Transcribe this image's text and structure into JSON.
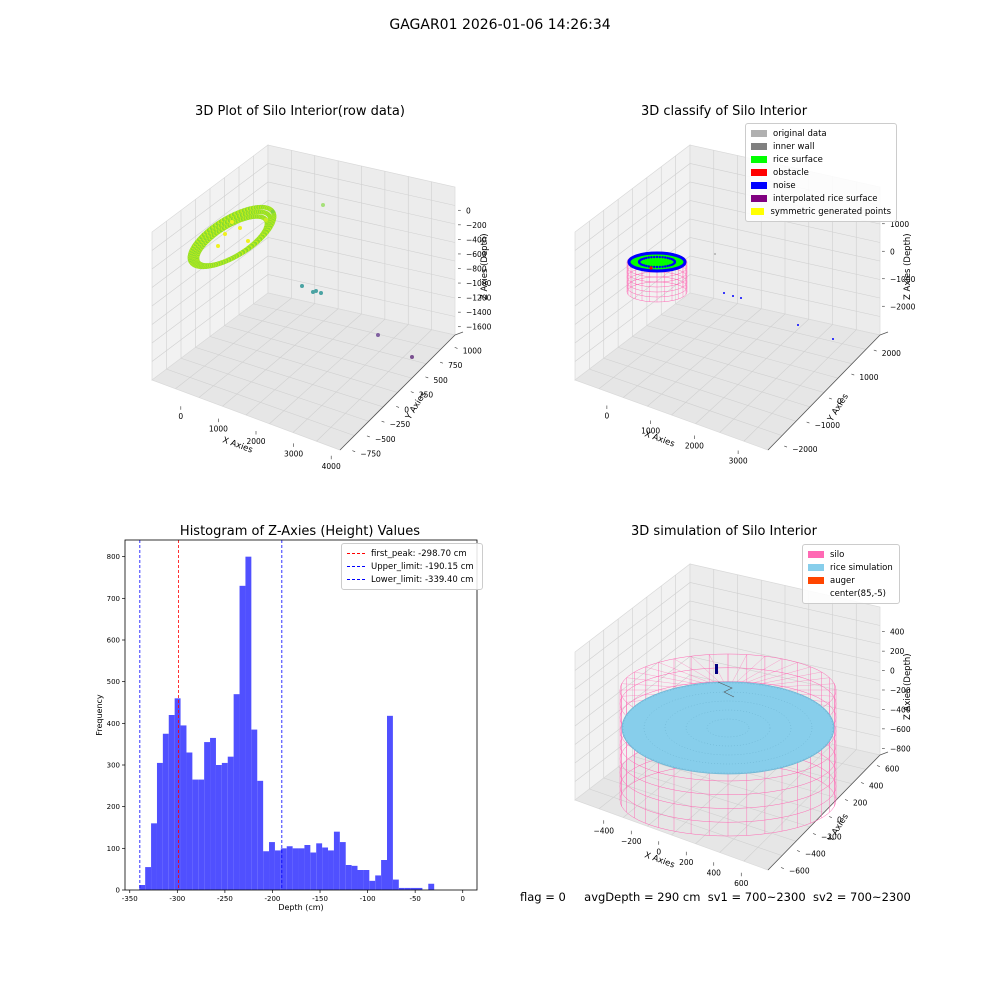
{
  "figure_title": "GAGAR01 2026-01-06 14:26:34",
  "status_line": {
    "flag": "flag = 0",
    "avg_depth": "avgDepth = 290 cm",
    "sv1": "sv1 = 700~2300",
    "sv2": "sv2 = 700~2300"
  },
  "colors": {
    "rice_surface": "#00ff00",
    "noise": "#0000ff",
    "silo": "#ff69b4",
    "rice_simulation": "#87ceeb",
    "auger": "#ff4500",
    "hist_bar": "#5050ff",
    "first_peak": "#ff0000",
    "limit_line": "#0000ff"
  },
  "chart_data": [
    {
      "type": "scatter",
      "subtype": "3d",
      "title": "3D Plot of Silo Interior(row data)",
      "xlabel": "X Axies",
      "ylabel": "Y Axies",
      "zlabel": "Z Axies (Depth)",
      "x_ticks": [
        "0",
        "1000",
        "2000",
        "3000",
        "4000"
      ],
      "y_ticks": [
        "−750",
        "−500",
        "−250",
        "0",
        "250",
        "500",
        "750",
        "1000"
      ],
      "z_ticks": [
        "0",
        "−200",
        "−400",
        "−600",
        "−800",
        "−1000",
        "−1200",
        "−1400",
        "−1600"
      ]
    },
    {
      "type": "scatter",
      "subtype": "3d",
      "title": "3D classify of Silo Interior",
      "xlabel": "X Axies",
      "ylabel": "Y Axies",
      "zlabel": "Z Axies (Depth)",
      "x_ticks": [
        "0",
        "1000",
        "2000",
        "3000"
      ],
      "y_ticks": [
        "−2000",
        "−1000",
        "0",
        "1000",
        "2000"
      ],
      "z_ticks": [
        "1000",
        "0",
        "−1000",
        "−2000"
      ],
      "legend": [
        {
          "label": "original data",
          "color": "#b0b0b0"
        },
        {
          "label": "inner wall",
          "color": "#808080"
        },
        {
          "label": "rice surface",
          "color": "#00ff00"
        },
        {
          "label": "obstacle",
          "color": "#ff0000"
        },
        {
          "label": "noise",
          "color": "#0000ff"
        },
        {
          "label": "interpolated rice surface",
          "color": "#800080"
        },
        {
          "label": "symmetric generated points",
          "color": "#ffff00"
        }
      ]
    },
    {
      "type": "bar",
      "subtype": "histogram",
      "title": "Histogram of Z-Axies (Height) Values",
      "xlabel": "Depth (cm)",
      "ylabel": "Frequency",
      "xlim": [
        -355,
        15
      ],
      "ylim": [
        0,
        840
      ],
      "x_ticks": [
        -350,
        -300,
        -250,
        -200,
        -150,
        -100,
        -50,
        0
      ],
      "y_ticks": [
        0,
        100,
        200,
        300,
        400,
        500,
        600,
        700,
        800
      ],
      "bin_start": -340,
      "bin_width": 6.2,
      "values": [
        12,
        55,
        160,
        305,
        375,
        420,
        460,
        395,
        330,
        265,
        265,
        355,
        365,
        300,
        305,
        320,
        470,
        730,
        800,
        385,
        262,
        93,
        115,
        95,
        100,
        105,
        100,
        100,
        108,
        90,
        112,
        102,
        95,
        140,
        115,
        60,
        58,
        48,
        48,
        22,
        35,
        72,
        418,
        25,
        5,
        5,
        5,
        5,
        0,
        15
      ],
      "vlines": [
        {
          "label": "first_peak: -298.70 cm",
          "x": -298.7,
          "color": "#ff0000"
        },
        {
          "label": "Upper_limit: -190.15 cm",
          "x": -190.15,
          "color": "#0000ff"
        },
        {
          "label": "Lower_limit: -339.40 cm",
          "x": -339.4,
          "color": "#0000ff"
        }
      ]
    },
    {
      "type": "scatter",
      "subtype": "3d-surface",
      "title": "3D simulation of Silo Interior",
      "xlabel": "X Axies",
      "ylabel": "Y Axies",
      "zlabel": "Z Axies (Depth)",
      "x_ticks": [
        "−400",
        "−200",
        "0",
        "200",
        "400",
        "600"
      ],
      "y_ticks": [
        "−600",
        "−400",
        "−200",
        "0",
        "200",
        "400",
        "600"
      ],
      "z_ticks": [
        "400",
        "200",
        "0",
        "−200",
        "−400",
        "−600",
        "−800"
      ],
      "legend": [
        {
          "label": "silo",
          "color": "#ff69b4"
        },
        {
          "label": "rice simulation",
          "color": "#87ceeb"
        },
        {
          "label": "auger",
          "color": "#ff4500"
        },
        {
          "label": "center(85,-5)",
          "color": ""
        }
      ]
    }
  ]
}
